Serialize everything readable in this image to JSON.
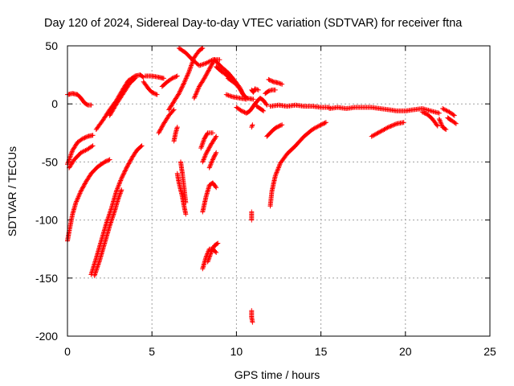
{
  "chart_data": {
    "type": "scatter",
    "title": "Day 120 of 2024, Sidereal Day-to-day VTEC variation (SDTVAR) for receiver ftna",
    "xlabel": "GPS time / hours",
    "ylabel": "SDTVAR / TECUs",
    "xlim": [
      0,
      25
    ],
    "ylim": [
      -200,
      50
    ],
    "xticks": [
      0,
      5,
      10,
      15,
      20,
      25
    ],
    "yticks": [
      -200,
      -150,
      -100,
      -50,
      0,
      50
    ],
    "xtick_labels": [
      "0",
      "5",
      "10",
      "15",
      "20",
      "25"
    ],
    "ytick_labels": [
      "-200",
      "-150",
      "-100",
      "-50",
      "0",
      "50"
    ],
    "grid": true,
    "marker": "+",
    "color": "#ff0000",
    "tracks": [
      {
        "name": "t01",
        "points": [
          [
            0,
            -52
          ],
          [
            0.1,
            -48
          ],
          [
            0.3,
            -40
          ],
          [
            0.6,
            -33
          ],
          [
            0.9,
            -30
          ],
          [
            1.2,
            -28
          ],
          [
            1.5,
            -27
          ]
        ]
      },
      {
        "name": "t02",
        "points": [
          [
            0,
            8
          ],
          [
            0.3,
            9
          ],
          [
            0.6,
            8
          ],
          [
            0.8,
            5
          ],
          [
            1,
            1
          ],
          [
            1.2,
            -1
          ],
          [
            1.4,
            -1
          ]
        ]
      },
      {
        "name": "t03",
        "points": [
          [
            0,
            -118
          ],
          [
            0.1,
            -110
          ],
          [
            0.3,
            -95
          ],
          [
            0.5,
            -85
          ],
          [
            0.8,
            -75
          ],
          [
            1.1,
            -67
          ],
          [
            1.4,
            -60
          ],
          [
            1.8,
            -54
          ],
          [
            2.2,
            -50
          ],
          [
            2.5,
            -48
          ]
        ]
      },
      {
        "name": "t04",
        "points": [
          [
            0.1,
            -55
          ],
          [
            0.4,
            -48
          ],
          [
            0.8,
            -42
          ],
          [
            1.2,
            -39
          ],
          [
            1.5,
            -36
          ]
        ]
      },
      {
        "name": "t05",
        "points": [
          [
            1.4,
            -147
          ],
          [
            1.7,
            -133
          ],
          [
            2.0,
            -118
          ],
          [
            2.3,
            -103
          ],
          [
            2.6,
            -90
          ],
          [
            2.9,
            -75
          ],
          [
            3.2,
            -64
          ],
          [
            3.5,
            -55
          ],
          [
            3.8,
            -47
          ],
          [
            4.1,
            -40
          ],
          [
            4.4,
            -36
          ]
        ]
      },
      {
        "name": "t06",
        "points": [
          [
            1.6,
            -148
          ],
          [
            1.9,
            -135
          ],
          [
            2.2,
            -120
          ],
          [
            2.5,
            -105
          ],
          [
            2.8,
            -92
          ],
          [
            3.0,
            -82
          ],
          [
            3.2,
            -74
          ]
        ]
      },
      {
        "name": "t07",
        "points": [
          [
            1.7,
            -22
          ],
          [
            2.1,
            -14
          ],
          [
            2.5,
            -5
          ],
          [
            2.9,
            3
          ],
          [
            3.3,
            13
          ],
          [
            3.6,
            20
          ],
          [
            4.0,
            24
          ],
          [
            4.3,
            25
          ],
          [
            4.5,
            23
          ]
        ]
      },
      {
        "name": "t08",
        "points": [
          [
            2.5,
            -10
          ],
          [
            2.9,
            0
          ],
          [
            3.3,
            9
          ],
          [
            3.7,
            18
          ],
          [
            4.0,
            22
          ]
        ]
      },
      {
        "name": "t09",
        "points": [
          [
            4.5,
            19
          ],
          [
            4.8,
            13
          ],
          [
            5.0,
            10
          ],
          [
            5.3,
            8
          ]
        ]
      },
      {
        "name": "t10",
        "points": [
          [
            4.6,
            24
          ],
          [
            5.0,
            24
          ],
          [
            5.4,
            23
          ],
          [
            5.7,
            22
          ]
        ]
      },
      {
        "name": "t11",
        "points": [
          [
            5.6,
            15
          ],
          [
            5.9,
            19
          ],
          [
            6.2,
            22
          ],
          [
            6.5,
            24
          ]
        ]
      },
      {
        "name": "t12",
        "points": [
          [
            5.4,
            -25
          ],
          [
            5.7,
            -17
          ],
          [
            6.0,
            -10
          ],
          [
            6.3,
            -5
          ]
        ]
      },
      {
        "name": "t13",
        "points": [
          [
            6.0,
            -5
          ],
          [
            6.3,
            2
          ],
          [
            6.6,
            9
          ],
          [
            6.9,
            18
          ],
          [
            7.2,
            28
          ],
          [
            7.5,
            40
          ],
          [
            7.8,
            46
          ],
          [
            8.0,
            48
          ]
        ]
      },
      {
        "name": "t14",
        "points": [
          [
            6.3,
            -32
          ],
          [
            6.4,
            -25
          ],
          [
            6.5,
            -20
          ]
        ]
      },
      {
        "name": "t15",
        "points": [
          [
            6.5,
            -60
          ],
          [
            6.6,
            -68
          ],
          [
            6.8,
            -80
          ],
          [
            6.9,
            -88
          ],
          [
            7.0,
            -95
          ]
        ]
      },
      {
        "name": "t16",
        "points": [
          [
            6.7,
            -50
          ],
          [
            6.8,
            -60
          ],
          [
            6.9,
            -72
          ],
          [
            7.0,
            -85
          ]
        ]
      },
      {
        "name": "t17",
        "points": [
          [
            6.6,
            48
          ],
          [
            7.0,
            44
          ],
          [
            7.4,
            38
          ],
          [
            7.8,
            33
          ],
          [
            8.2,
            35
          ],
          [
            8.6,
            38
          ],
          [
            9.0,
            38
          ]
        ]
      },
      {
        "name": "t18",
        "points": [
          [
            7.5,
            5
          ],
          [
            7.8,
            15
          ],
          [
            8.1,
            22
          ],
          [
            8.4,
            30
          ],
          [
            8.7,
            38
          ]
        ]
      },
      {
        "name": "t19",
        "points": [
          [
            7.9,
            -38
          ],
          [
            8.1,
            -30
          ],
          [
            8.3,
            -25
          ],
          [
            8.6,
            -25
          ]
        ]
      },
      {
        "name": "t20",
        "points": [
          [
            8.0,
            -50
          ],
          [
            8.2,
            -43
          ],
          [
            8.5,
            -35
          ],
          [
            8.8,
            -28
          ]
        ]
      },
      {
        "name": "t21",
        "points": [
          [
            8.0,
            -93
          ],
          [
            8.2,
            -80
          ],
          [
            8.4,
            -70
          ],
          [
            8.6,
            -68
          ],
          [
            8.8,
            -72
          ]
        ]
      },
      {
        "name": "t22",
        "points": [
          [
            8.0,
            -142
          ],
          [
            8.2,
            -132
          ],
          [
            8.4,
            -125
          ],
          [
            8.6,
            -125
          ],
          [
            8.8,
            -128
          ]
        ]
      },
      {
        "name": "t23",
        "points": [
          [
            8.3,
            -136
          ],
          [
            8.5,
            -128
          ],
          [
            8.7,
            -122
          ],
          [
            8.9,
            -120
          ]
        ]
      },
      {
        "name": "t24",
        "points": [
          [
            8.4,
            -55
          ],
          [
            8.6,
            -48
          ],
          [
            8.8,
            -42
          ]
        ]
      },
      {
        "name": "t25",
        "points": [
          [
            8.7,
            38
          ],
          [
            9.1,
            32
          ],
          [
            9.5,
            27
          ],
          [
            9.9,
            20
          ],
          [
            10.2,
            14
          ],
          [
            10.4,
            8
          ],
          [
            10.6,
            5
          ],
          [
            11.0,
            4
          ]
        ]
      },
      {
        "name": "t26",
        "points": [
          [
            9.5,
            22
          ],
          [
            9.9,
            18
          ],
          [
            10.2,
            13
          ],
          [
            10.4,
            8
          ],
          [
            10.6,
            5
          ]
        ]
      },
      {
        "name": "t27",
        "points": [
          [
            9.4,
            8
          ],
          [
            9.8,
            6
          ],
          [
            10.2,
            5
          ],
          [
            10.6,
            4
          ]
        ]
      },
      {
        "name": "t28",
        "points": [
          [
            8.8,
            32
          ],
          [
            9.1,
            28
          ],
          [
            9.4,
            25
          ],
          [
            9.6,
            22
          ]
        ]
      },
      {
        "name": "t29",
        "points": [
          [
            10.0,
            -3
          ],
          [
            10.3,
            -6
          ],
          [
            10.6,
            -8
          ],
          [
            10.8,
            -6
          ],
          [
            11.0,
            -2
          ],
          [
            11.2,
            2
          ],
          [
            11.4,
            5
          ],
          [
            11.6,
            3
          ],
          [
            11.8,
            -1
          ]
        ]
      },
      {
        "name": "t30",
        "points": [
          [
            10.9,
            -20
          ],
          [
            10.95,
            -18
          ]
        ]
      },
      {
        "name": "t31",
        "points": [
          [
            10.9,
            -93
          ],
          [
            10.9,
            -100
          ]
        ]
      },
      {
        "name": "t32",
        "points": [
          [
            10.9,
            -178
          ],
          [
            10.9,
            -184
          ],
          [
            10.95,
            -188
          ]
        ]
      },
      {
        "name": "t33",
        "points": [
          [
            10.9,
            12
          ],
          [
            11.0,
            10
          ],
          [
            11.1,
            13
          ],
          [
            11.3,
            12
          ]
        ]
      },
      {
        "name": "t34",
        "points": [
          [
            11.2,
            -2
          ],
          [
            11.4,
            -4
          ],
          [
            11.6,
            -6
          ]
        ]
      },
      {
        "name": "t35",
        "points": [
          [
            11.7,
            9
          ],
          [
            11.9,
            11
          ],
          [
            12.1,
            12
          ],
          [
            12.3,
            12
          ]
        ]
      },
      {
        "name": "t36",
        "points": [
          [
            11.9,
            21
          ],
          [
            12.2,
            19
          ],
          [
            12.5,
            18
          ],
          [
            12.7,
            17
          ]
        ]
      },
      {
        "name": "t37",
        "points": [
          [
            11.8,
            -28
          ],
          [
            12.0,
            -25
          ],
          [
            12.2,
            -22
          ],
          [
            12.4,
            -20
          ],
          [
            12.7,
            -18
          ]
        ]
      },
      {
        "name": "t38",
        "points": [
          [
            12.0,
            -88
          ],
          [
            12.1,
            -75
          ],
          [
            12.3,
            -62
          ],
          [
            12.6,
            -51
          ],
          [
            13.0,
            -43
          ],
          [
            13.5,
            -36
          ],
          [
            14.0,
            -28
          ],
          [
            14.5,
            -22
          ],
          [
            15.0,
            -18
          ],
          [
            15.3,
            -16
          ]
        ]
      },
      {
        "name": "t39",
        "points": [
          [
            12.0,
            -2
          ],
          [
            12.5,
            -1
          ],
          [
            13.0,
            -2
          ],
          [
            13.5,
            -1
          ],
          [
            14.0,
            -2
          ],
          [
            14.5,
            -2
          ],
          [
            15.0,
            -3
          ],
          [
            15.5,
            -3
          ]
        ]
      },
      {
        "name": "t40",
        "points": [
          [
            15.5,
            -4
          ],
          [
            16.0,
            -3
          ],
          [
            16.5,
            -4
          ],
          [
            17.0,
            -3
          ],
          [
            17.5,
            -3
          ],
          [
            18.0,
            -3
          ],
          [
            18.5,
            -4
          ],
          [
            19.0,
            -5
          ],
          [
            19.5,
            -6
          ],
          [
            20.0,
            -6
          ],
          [
            20.5,
            -5
          ],
          [
            21.0,
            -4
          ],
          [
            21.5,
            -6
          ],
          [
            22.0,
            -8
          ]
        ]
      },
      {
        "name": "t41",
        "points": [
          [
            18.0,
            -28
          ],
          [
            18.5,
            -24
          ],
          [
            19.0,
            -20
          ],
          [
            19.5,
            -17
          ],
          [
            19.9,
            -16
          ]
        ]
      },
      {
        "name": "t42",
        "points": [
          [
            21.0,
            -7
          ],
          [
            21.3,
            -9
          ],
          [
            21.6,
            -13
          ],
          [
            21.9,
            -19
          ]
        ]
      },
      {
        "name": "t43",
        "points": [
          [
            22.0,
            -13
          ],
          [
            22.2,
            -20
          ],
          [
            22.4,
            -22
          ]
        ]
      },
      {
        "name": "t44",
        "points": [
          [
            22.2,
            -4
          ],
          [
            22.6,
            -7
          ],
          [
            22.9,
            -10
          ]
        ]
      },
      {
        "name": "t45",
        "points": [
          [
            22.5,
            -12
          ],
          [
            22.7,
            -14
          ],
          [
            23.0,
            -17
          ]
        ]
      }
    ]
  }
}
